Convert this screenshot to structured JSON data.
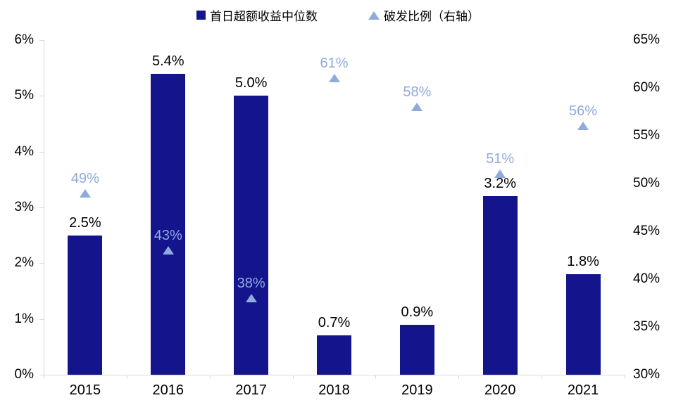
{
  "legend": {
    "items": [
      {
        "label": "首日超额收益中位数",
        "marker": "square",
        "color": "#14148C"
      },
      {
        "label": "破发比例（右轴）",
        "marker": "triangle",
        "color": "#8FAADC"
      }
    ]
  },
  "chart_data": {
    "type": "bar",
    "subtype": "bar-with-scatter-triangles-dual-axis",
    "categories": [
      "2015",
      "2016",
      "2017",
      "2018",
      "2019",
      "2020",
      "2021"
    ],
    "series": [
      {
        "name": "首日超额收益中位数",
        "type": "bar",
        "axis": "left",
        "color": "#14148C",
        "values": [
          2.5,
          5.4,
          5.0,
          0.7,
          0.9,
          3.2,
          1.8
        ],
        "labels": [
          "2.5%",
          "5.4%",
          "5.0%",
          "0.7%",
          "0.9%",
          "3.2%",
          "1.8%"
        ],
        "label_color": "#000000"
      },
      {
        "name": "破发比例（右轴）",
        "type": "scatter",
        "marker": "triangle",
        "axis": "right",
        "color": "#8FAADC",
        "values": [
          49,
          43,
          38,
          61,
          58,
          51,
          56
        ],
        "labels": [
          "49%",
          "43%",
          "38%",
          "61%",
          "58%",
          "51%",
          "56%"
        ],
        "label_color": "#8FAADC"
      }
    ],
    "left_axis": {
      "min": 0,
      "max": 6,
      "step": 1,
      "ticks": [
        "0%",
        "1%",
        "2%",
        "3%",
        "4%",
        "5%",
        "6%"
      ]
    },
    "right_axis": {
      "min": 30,
      "max": 65,
      "step": 5,
      "ticks": [
        "30%",
        "35%",
        "40%",
        "45%",
        "50%",
        "55%",
        "60%",
        "65%"
      ]
    },
    "grid": false,
    "legend_position": "top",
    "axis_line_color": "#D9D9D9",
    "background": "#FFFFFF"
  }
}
